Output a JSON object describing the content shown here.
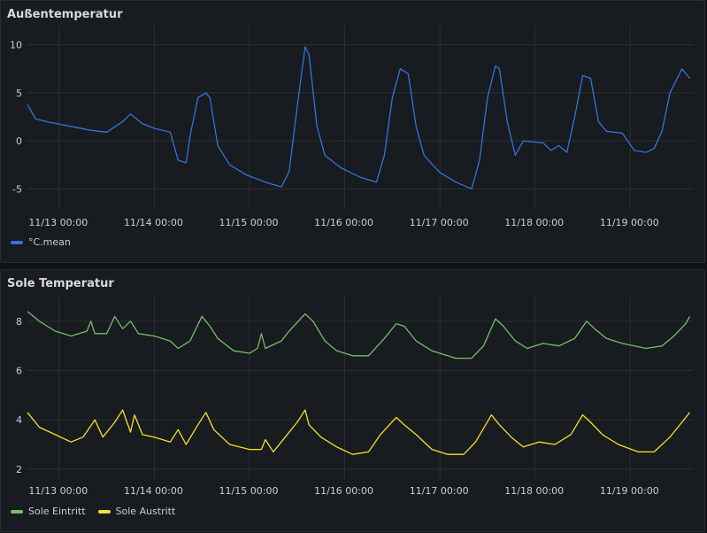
{
  "chart_data": [
    {
      "type": "line",
      "title": "Außentemperatur",
      "ylim": [
        -7,
        12
      ],
      "yticks": [
        -5,
        0,
        5,
        10
      ],
      "xlim": [
        "11/12 16:00",
        "11/19 16:00"
      ],
      "xticks": [
        "11/13 00:00",
        "11/14 00:00",
        "11/15 00:00",
        "11/16 00:00",
        "11/17 00:00",
        "11/18 00:00",
        "11/19 00:00"
      ],
      "legend_position": "bottom-left",
      "grid": true,
      "series": [
        {
          "name": "°C.mean",
          "color": "#3274d9",
          "points": [
            [
              "11/12 16:00",
              3.8
            ],
            [
              "11/12 18:00",
              2.3
            ],
            [
              "11/12 22:00",
              1.9
            ],
            [
              "11/13 03:00",
              1.5
            ],
            [
              "11/13 08:00",
              1.1
            ],
            [
              "11/13 12:00",
              0.9
            ],
            [
              "11/13 16:00",
              2.0
            ],
            [
              "11/13 18:00",
              2.8
            ],
            [
              "11/13 21:00",
              1.8
            ],
            [
              "11/14 00:00",
              1.3
            ],
            [
              "11/14 04:00",
              0.9
            ],
            [
              "11/14 06:00",
              -2.0
            ],
            [
              "11/14 08:00",
              -2.3
            ],
            [
              "11/14 09:00",
              0.5
            ],
            [
              "11/14 11:00",
              4.5
            ],
            [
              "11/14 13:00",
              5.0
            ],
            [
              "11/14 14:00",
              4.5
            ],
            [
              "11/14 16:00",
              -0.5
            ],
            [
              "11/14 19:00",
              -2.5
            ],
            [
              "11/14 23:00",
              -3.5
            ],
            [
              "11/15 04:00",
              -4.3
            ],
            [
              "11/15 08:00",
              -4.8
            ],
            [
              "11/15 10:00",
              -3.2
            ],
            [
              "11/15 12:00",
              3.5
            ],
            [
              "11/15 14:00",
              9.8
            ],
            [
              "11/15 15:00",
              9.0
            ],
            [
              "11/15 17:00",
              1.5
            ],
            [
              "11/15 19:00",
              -1.5
            ],
            [
              "11/15 23:00",
              -2.8
            ],
            [
              "11/16 04:00",
              -3.8
            ],
            [
              "11/16 08:00",
              -4.3
            ],
            [
              "11/16 10:00",
              -1.5
            ],
            [
              "11/16 12:00",
              4.5
            ],
            [
              "11/16 14:00",
              7.5
            ],
            [
              "11/16 16:00",
              7.0
            ],
            [
              "11/16 18:00",
              1.5
            ],
            [
              "11/16 20:00",
              -1.5
            ],
            [
              "11/17 00:00",
              -3.3
            ],
            [
              "11/17 04:00",
              -4.3
            ],
            [
              "11/17 08:00",
              -5.0
            ],
            [
              "11/17 10:00",
              -2.0
            ],
            [
              "11/17 12:00",
              4.5
            ],
            [
              "11/17 14:00",
              7.8
            ],
            [
              "11/17 15:00",
              7.5
            ],
            [
              "11/17 17:00",
              2.0
            ],
            [
              "11/17 19:00",
              -1.5
            ],
            [
              "11/17 21:00",
              0.0
            ],
            [
              "11/18 02:00",
              -0.2
            ],
            [
              "11/18 04:00",
              -1.0
            ],
            [
              "11/18 06:00",
              -0.5
            ],
            [
              "11/18 08:00",
              -1.2
            ],
            [
              "11/18 10:00",
              2.5
            ],
            [
              "11/18 12:00",
              6.8
            ],
            [
              "11/18 14:00",
              6.5
            ],
            [
              "11/18 16:00",
              2.0
            ],
            [
              "11/18 18:00",
              1.0
            ],
            [
              "11/18 22:00",
              0.8
            ],
            [
              "11/19 01:00",
              -1.0
            ],
            [
              "11/19 04:00",
              -1.2
            ],
            [
              "11/19 06:00",
              -0.8
            ],
            [
              "11/19 08:00",
              1.0
            ],
            [
              "11/19 10:00",
              5.0
            ],
            [
              "11/19 13:00",
              7.5
            ],
            [
              "11/19 15:00",
              6.5
            ]
          ]
        }
      ]
    },
    {
      "type": "line",
      "title": "Sole Temperatur",
      "ylim": [
        1.6,
        9.0
      ],
      "yticks": [
        2,
        4,
        6,
        8
      ],
      "xlim": [
        "11/12 16:00",
        "11/19 16:00"
      ],
      "xticks": [
        "11/13 00:00",
        "11/14 00:00",
        "11/15 00:00",
        "11/16 00:00",
        "11/17 00:00",
        "11/18 00:00",
        "11/19 00:00"
      ],
      "legend_position": "bottom-left",
      "grid": true,
      "series": [
        {
          "name": "Sole Eintritt",
          "color": "#73bf69",
          "points": [
            [
              "11/12 16:00",
              8.4
            ],
            [
              "11/12 19:00",
              8.0
            ],
            [
              "11/12 23:00",
              7.6
            ],
            [
              "11/13 03:00",
              7.4
            ],
            [
              "11/13 07:00",
              7.6
            ],
            [
              "11/13 08:00",
              8.0
            ],
            [
              "11/13 09:00",
              7.5
            ],
            [
              "11/13 12:00",
              7.5
            ],
            [
              "11/13 14:00",
              8.2
            ],
            [
              "11/13 16:00",
              7.7
            ],
            [
              "11/13 18:00",
              8.0
            ],
            [
              "11/13 20:00",
              7.5
            ],
            [
              "11/14 00:00",
              7.4
            ],
            [
              "11/14 04:00",
              7.2
            ],
            [
              "11/14 06:00",
              6.9
            ],
            [
              "11/14 09:00",
              7.2
            ],
            [
              "11/14 12:00",
              8.2
            ],
            [
              "11/14 14:00",
              7.8
            ],
            [
              "11/14 16:00",
              7.3
            ],
            [
              "11/14 20:00",
              6.8
            ],
            [
              "11/15 00:00",
              6.7
            ],
            [
              "11/15 02:00",
              6.9
            ],
            [
              "11/15 03:00",
              7.5
            ],
            [
              "11/15 04:00",
              6.9
            ],
            [
              "11/15 08:00",
              7.2
            ],
            [
              "11/15 10:00",
              7.6
            ],
            [
              "11/15 14:00",
              8.3
            ],
            [
              "11/15 16:00",
              8.0
            ],
            [
              "11/15 19:00",
              7.2
            ],
            [
              "11/15 22:00",
              6.8
            ],
            [
              "11/16 02:00",
              6.6
            ],
            [
              "11/16 06:00",
              6.6
            ],
            [
              "11/16 10:00",
              7.3
            ],
            [
              "11/16 13:00",
              7.9
            ],
            [
              "11/16 15:00",
              7.8
            ],
            [
              "11/16 18:00",
              7.2
            ],
            [
              "11/16 22:00",
              6.8
            ],
            [
              "11/17 04:00",
              6.5
            ],
            [
              "11/17 08:00",
              6.5
            ],
            [
              "11/17 11:00",
              7.0
            ],
            [
              "11/17 14:00",
              8.1
            ],
            [
              "11/17 16:00",
              7.8
            ],
            [
              "11/17 19:00",
              7.2
            ],
            [
              "11/17 22:00",
              6.9
            ],
            [
              "11/18 02:00",
              7.1
            ],
            [
              "11/18 06:00",
              7.0
            ],
            [
              "11/18 10:00",
              7.3
            ],
            [
              "11/18 13:00",
              8.0
            ],
            [
              "11/18 15:00",
              7.7
            ],
            [
              "11/18 18:00",
              7.3
            ],
            [
              "11/18 22:00",
              7.1
            ],
            [
              "11/19 04:00",
              6.9
            ],
            [
              "11/19 08:00",
              7.0
            ],
            [
              "11/19 11:00",
              7.4
            ],
            [
              "11/19 14:00",
              7.9
            ],
            [
              "11/19 15:00",
              8.2
            ]
          ]
        },
        {
          "name": "Sole Austritt",
          "color": "#fade2a",
          "points": [
            [
              "11/12 16:00",
              4.3
            ],
            [
              "11/12 19:00",
              3.7
            ],
            [
              "11/12 23:00",
              3.4
            ],
            [
              "11/13 03:00",
              3.1
            ],
            [
              "11/13 06:00",
              3.3
            ],
            [
              "11/13 09:00",
              4.0
            ],
            [
              "11/13 11:00",
              3.3
            ],
            [
              "11/13 14:00",
              3.9
            ],
            [
              "11/13 16:00",
              4.4
            ],
            [
              "11/13 18:00",
              3.5
            ],
            [
              "11/13 19:00",
              4.2
            ],
            [
              "11/13 21:00",
              3.4
            ],
            [
              "11/14 00:00",
              3.3
            ],
            [
              "11/14 04:00",
              3.1
            ],
            [
              "11/14 06:00",
              3.6
            ],
            [
              "11/14 08:00",
              3.0
            ],
            [
              "11/14 11:00",
              3.8
            ],
            [
              "11/14 13:00",
              4.3
            ],
            [
              "11/14 15:00",
              3.6
            ],
            [
              "11/14 19:00",
              3.0
            ],
            [
              "11/15 00:00",
              2.8
            ],
            [
              "11/15 03:00",
              2.8
            ],
            [
              "11/15 04:00",
              3.2
            ],
            [
              "11/15 06:00",
              2.7
            ],
            [
              "11/15 09:00",
              3.3
            ],
            [
              "11/15 12:00",
              3.9
            ],
            [
              "11/15 14:00",
              4.4
            ],
            [
              "11/15 15:00",
              3.8
            ],
            [
              "11/15 18:00",
              3.3
            ],
            [
              "11/15 22:00",
              2.9
            ],
            [
              "11/16 02:00",
              2.6
            ],
            [
              "11/16 06:00",
              2.7
            ],
            [
              "11/16 09:00",
              3.4
            ],
            [
              "11/16 13:00",
              4.1
            ],
            [
              "11/16 15:00",
              3.8
            ],
            [
              "11/16 18:00",
              3.4
            ],
            [
              "11/16 22:00",
              2.8
            ],
            [
              "11/17 02:00",
              2.6
            ],
            [
              "11/17 06:00",
              2.6
            ],
            [
              "11/17 09:00",
              3.1
            ],
            [
              "11/17 13:00",
              4.2
            ],
            [
              "11/17 15:00",
              3.8
            ],
            [
              "11/17 18:00",
              3.3
            ],
            [
              "11/17 21:00",
              2.9
            ],
            [
              "11/18 01:00",
              3.1
            ],
            [
              "11/18 05:00",
              3.0
            ],
            [
              "11/18 09:00",
              3.4
            ],
            [
              "11/18 12:00",
              4.2
            ],
            [
              "11/18 14:00",
              3.9
            ],
            [
              "11/18 17:00",
              3.4
            ],
            [
              "11/18 21:00",
              3.0
            ],
            [
              "11/19 02:00",
              2.7
            ],
            [
              "11/19 06:00",
              2.7
            ],
            [
              "11/19 10:00",
              3.3
            ],
            [
              "11/19 13:00",
              3.9
            ],
            [
              "11/19 15:00",
              4.3
            ]
          ]
        }
      ]
    }
  ]
}
